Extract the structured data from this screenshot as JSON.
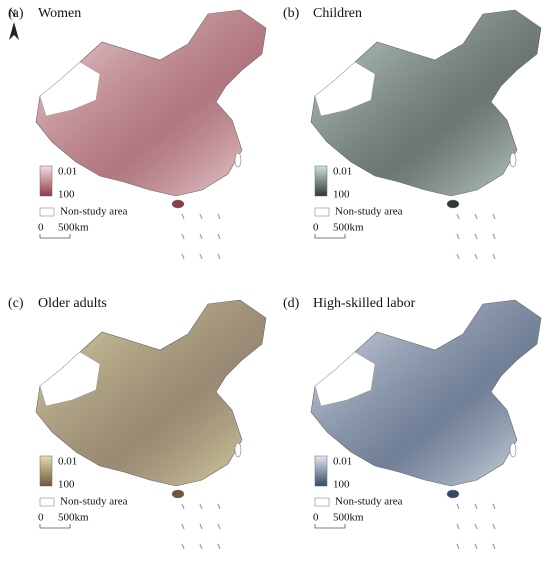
{
  "north_arrow": "N",
  "panels": [
    {
      "label": "(a)",
      "title": "Women",
      "legend_min": "0.01",
      "legend_max": "100",
      "non_study": "Non-study area",
      "scale_start": "0",
      "scale_end": "500km",
      "colors": [
        "#f4dfe1",
        "#8f3c48"
      ]
    },
    {
      "label": "(b)",
      "title": "Children",
      "legend_min": "0.01",
      "legend_max": "100",
      "non_study": "Non-study area",
      "scale_start": "0",
      "scale_end": "500km",
      "colors": [
        "#cfe0d9",
        "#2c3b36"
      ]
    },
    {
      "label": "(c)",
      "title": "Older adults",
      "legend_min": "0.01",
      "legend_max": "100",
      "non_study": "Non-study area",
      "scale_start": "0",
      "scale_end": "500km",
      "colors": [
        "#e3dcae",
        "#6d5838"
      ]
    },
    {
      "label": "(d)",
      "title": "High-skilled labor",
      "legend_min": "0.01",
      "legend_max": "100",
      "non_study": "Non-study area",
      "scale_start": "0",
      "scale_end": "500km",
      "colors": [
        "#e4eaf0",
        "#34486a"
      ]
    }
  ]
}
